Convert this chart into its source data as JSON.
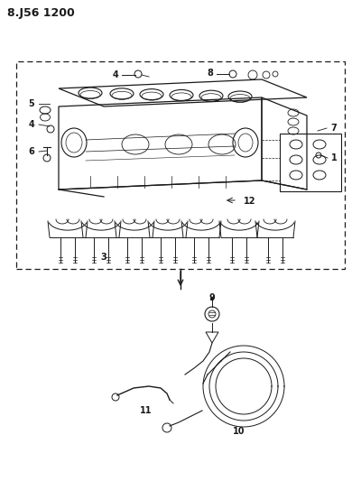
{
  "title": "8.J56 1200",
  "bg_color": "#ffffff",
  "line_color": "#1a1a1a",
  "fig_w": 4.0,
  "fig_h": 5.33,
  "dpi": 100
}
